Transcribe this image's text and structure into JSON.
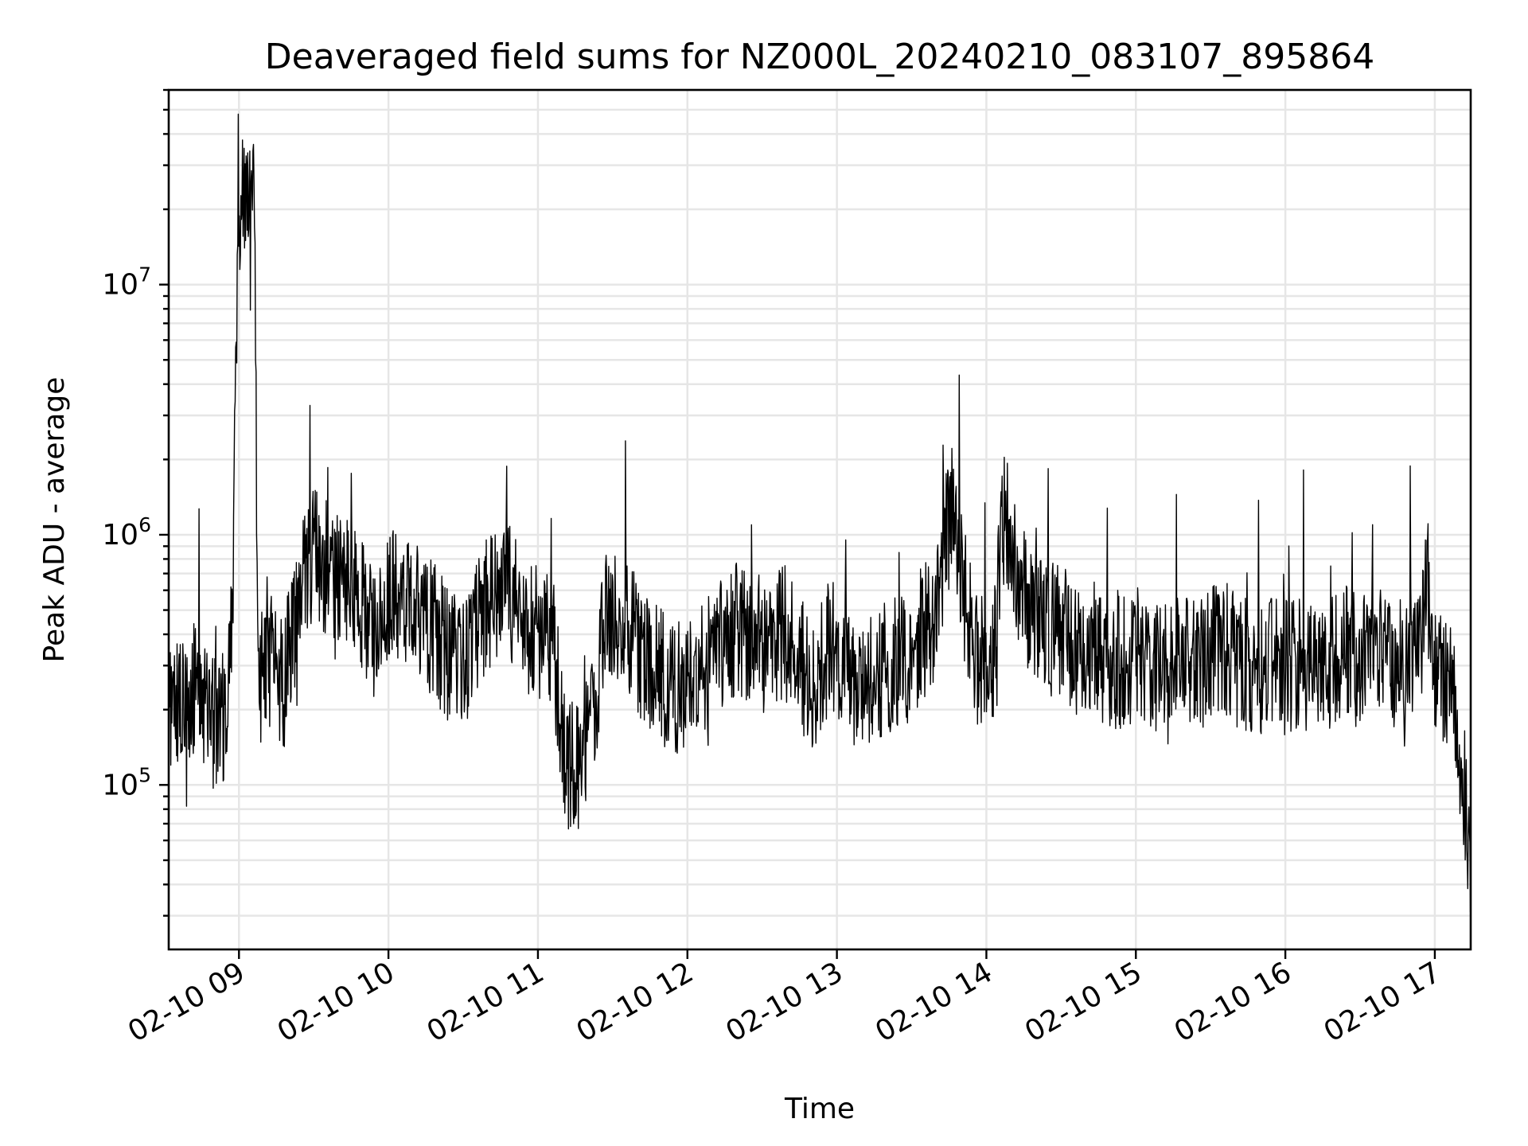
{
  "chart_data": {
    "type": "line",
    "title": "Deaveraged field sums for NZ000L_20240210_083107_895864",
    "xlabel": "Time",
    "ylabel": "Peak ADU - average",
    "yscale": "log",
    "ylim": [
      22000,
      60000000
    ],
    "xlim_hours": [
      8.53,
      17.24
    ],
    "grid": true,
    "legend": "none",
    "line_color": "#000000",
    "x_ticks": [
      {
        "hour": 9,
        "label": "02-10 09"
      },
      {
        "hour": 10,
        "label": "02-10 10"
      },
      {
        "hour": 11,
        "label": "02-10 11"
      },
      {
        "hour": 12,
        "label": "02-10 12"
      },
      {
        "hour": 13,
        "label": "02-10 13"
      },
      {
        "hour": 14,
        "label": "02-10 14"
      },
      {
        "hour": 15,
        "label": "02-10 15"
      },
      {
        "hour": 16,
        "label": "02-10 16"
      },
      {
        "hour": 17,
        "label": "02-10 17"
      }
    ],
    "y_ticks": [
      {
        "value": 100000,
        "base": "10",
        "exp": "5"
      },
      {
        "value": 1000000,
        "base": "10",
        "exp": "6"
      },
      {
        "value": 10000000,
        "base": "10",
        "exp": "7"
      }
    ],
    "series": [
      {
        "x_hours": [
          8.53,
          8.62,
          8.72,
          8.8,
          8.88,
          8.95,
          9.0,
          9.03,
          9.06,
          9.1,
          9.13,
          9.2,
          9.3,
          9.4,
          9.5,
          9.6,
          9.7,
          9.8,
          9.9,
          10.0,
          10.1,
          10.2,
          10.3,
          10.4,
          10.5,
          10.6,
          10.7,
          10.8,
          10.9,
          11.0,
          11.1,
          11.18,
          11.25,
          11.32,
          11.4,
          11.45,
          11.55,
          11.65,
          11.75,
          11.85,
          11.95,
          12.05,
          12.15,
          12.25,
          12.35,
          12.45,
          12.55,
          12.65,
          12.75,
          12.85,
          12.95,
          13.05,
          13.15,
          13.25,
          13.35,
          13.45,
          13.55,
          13.65,
          13.72,
          13.78,
          13.85,
          13.95,
          14.05,
          14.12,
          14.2,
          14.3,
          14.4,
          14.5,
          14.6,
          14.7,
          14.8,
          14.9,
          15.0,
          15.1,
          15.2,
          15.3,
          15.4,
          15.5,
          15.6,
          15.7,
          15.8,
          15.9,
          16.0,
          16.1,
          16.2,
          16.3,
          16.4,
          16.5,
          16.6,
          16.7,
          16.8,
          16.9,
          16.95,
          17.0,
          17.05,
          17.1,
          17.15,
          17.2,
          17.24
        ],
        "values": [
          180000,
          220000,
          260000,
          190000,
          160000,
          350000,
          18000000,
          25000000,
          20000000,
          28000000,
          240000,
          320000,
          260000,
          520000,
          900000,
          700000,
          650000,
          550000,
          380000,
          550000,
          600000,
          500000,
          420000,
          330000,
          300000,
          450000,
          560000,
          600000,
          450000,
          400000,
          380000,
          130000,
          110000,
          140000,
          260000,
          500000,
          480000,
          380000,
          300000,
          260000,
          250000,
          280000,
          320000,
          400000,
          420000,
          380000,
          340000,
          420000,
          300000,
          250000,
          360000,
          300000,
          280000,
          260000,
          300000,
          320000,
          380000,
          480000,
          900000,
          1400000,
          600000,
          300000,
          350000,
          1200000,
          700000,
          450000,
          420000,
          400000,
          360000,
          350000,
          330000,
          300000,
          350000,
          290000,
          300000,
          340000,
          310000,
          330000,
          350000,
          310000,
          300000,
          300000,
          290000,
          300000,
          320000,
          310000,
          340000,
          300000,
          380000,
          280000,
          300000,
          330000,
          700000,
          260000,
          250000,
          240000,
          170000,
          100000,
          45000
        ]
      }
    ]
  }
}
